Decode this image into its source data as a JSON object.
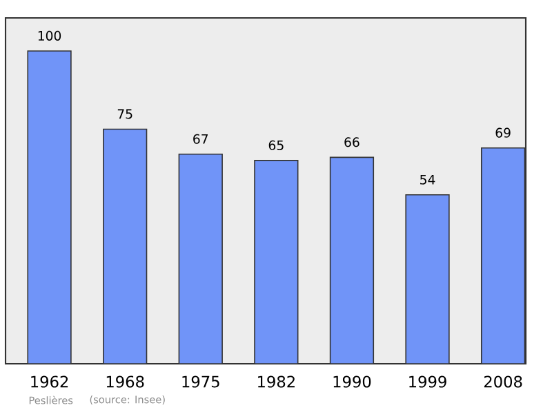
{
  "chart_data": {
    "type": "bar",
    "categories": [
      "1962",
      "1968",
      "1975",
      "1982",
      "1990",
      "1999",
      "2008"
    ],
    "values": [
      100,
      75,
      67,
      65,
      66,
      54,
      69
    ],
    "color": "#7094f8",
    "data_labels": true,
    "grid": false,
    "annotations": [
      "Peslières",
      "(source: Insee)"
    ]
  }
}
